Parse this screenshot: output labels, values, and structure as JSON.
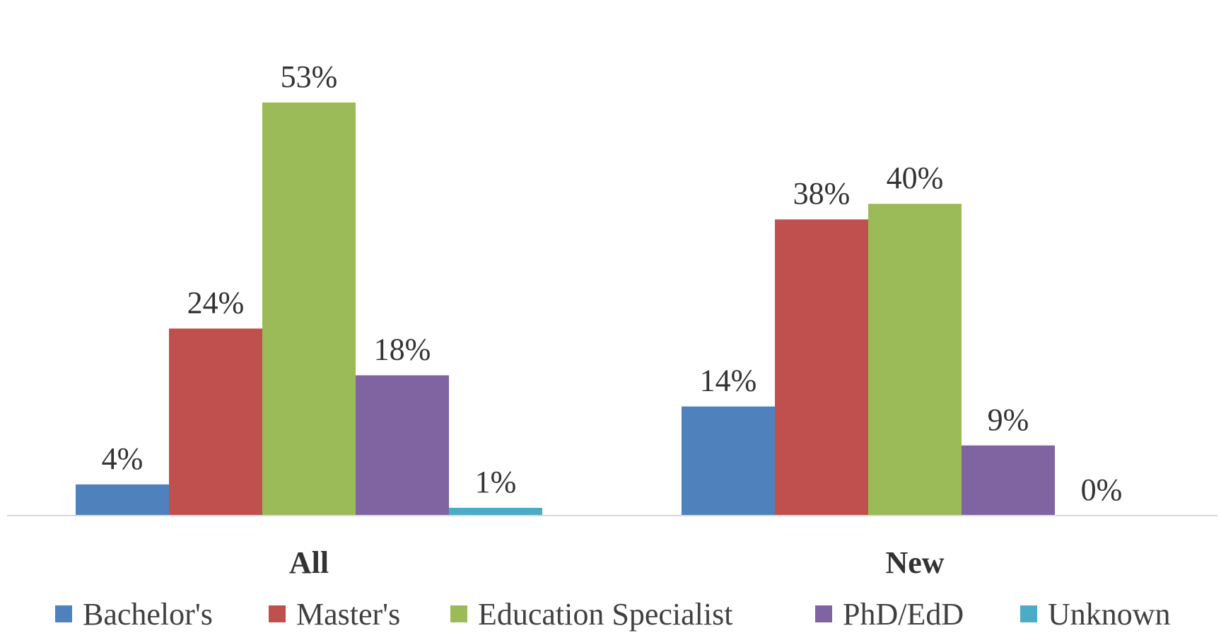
{
  "chart_data": {
    "type": "bar",
    "categories": [
      "All",
      "New"
    ],
    "series": [
      {
        "name": "Bachelor's",
        "color": "#4F81BD",
        "values": [
          4,
          14
        ],
        "labels": [
          "4%",
          "14%"
        ]
      },
      {
        "name": "Master's",
        "color": "#C0504D",
        "values": [
          24,
          38
        ],
        "labels": [
          "24%",
          "38%"
        ]
      },
      {
        "name": "Education Specialist",
        "color": "#9BBB59",
        "values": [
          53,
          40
        ],
        "labels": [
          "53%",
          "40%"
        ]
      },
      {
        "name": "PhD/EdD",
        "color": "#8064A2",
        "values": [
          18,
          9
        ],
        "labels": [
          "18%",
          "9%"
        ]
      },
      {
        "name": "Unknown",
        "color": "#4BACC6",
        "values": [
          1,
          0
        ],
        "labels": [
          "1%",
          "0%"
        ]
      }
    ],
    "ylim": [
      0,
      60
    ],
    "grid": false,
    "legend_position": "bottom"
  }
}
